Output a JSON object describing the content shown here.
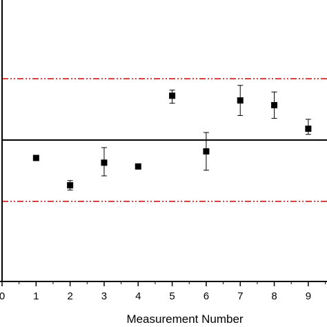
{
  "chart_data": {
    "type": "scatter",
    "title": "",
    "xlabel": "Measurement Number",
    "ylabel": "",
    "xlim": [
      0,
      9.55
    ],
    "ylim": [
      -1.5,
      1.5
    ],
    "x_ticks": [
      0,
      1,
      2,
      3,
      4,
      5,
      6,
      7,
      8,
      9
    ],
    "x_tick_labels": [
      "0",
      "1",
      "2",
      "3",
      "4",
      "5",
      "6",
      "7",
      "8",
      "9"
    ],
    "grid": false,
    "legend": null,
    "series": [
      {
        "x": [
          1,
          2,
          3,
          4,
          5,
          6,
          7,
          8,
          9
        ],
        "y": [
          -0.19,
          -0.48,
          -0.24,
          -0.28,
          0.47,
          -0.12,
          0.42,
          0.37,
          0.12
        ],
        "err_low": [
          0,
          0.05,
          0.14,
          0,
          0.08,
          0.2,
          0.16,
          0.14,
          0.06
        ],
        "err_high": [
          0,
          0.05,
          0.16,
          0,
          0.06,
          0.2,
          0.16,
          0.14,
          0.1
        ]
      }
    ],
    "reference_lines": [
      {
        "y": 0,
        "style": "solid",
        "color": "#000000"
      },
      {
        "y": 0.65,
        "style": "dash-dot-dot",
        "color": "#cc0000"
      },
      {
        "y": -0.65,
        "style": "dash-dot-dot",
        "color": "#cc0000"
      }
    ]
  }
}
